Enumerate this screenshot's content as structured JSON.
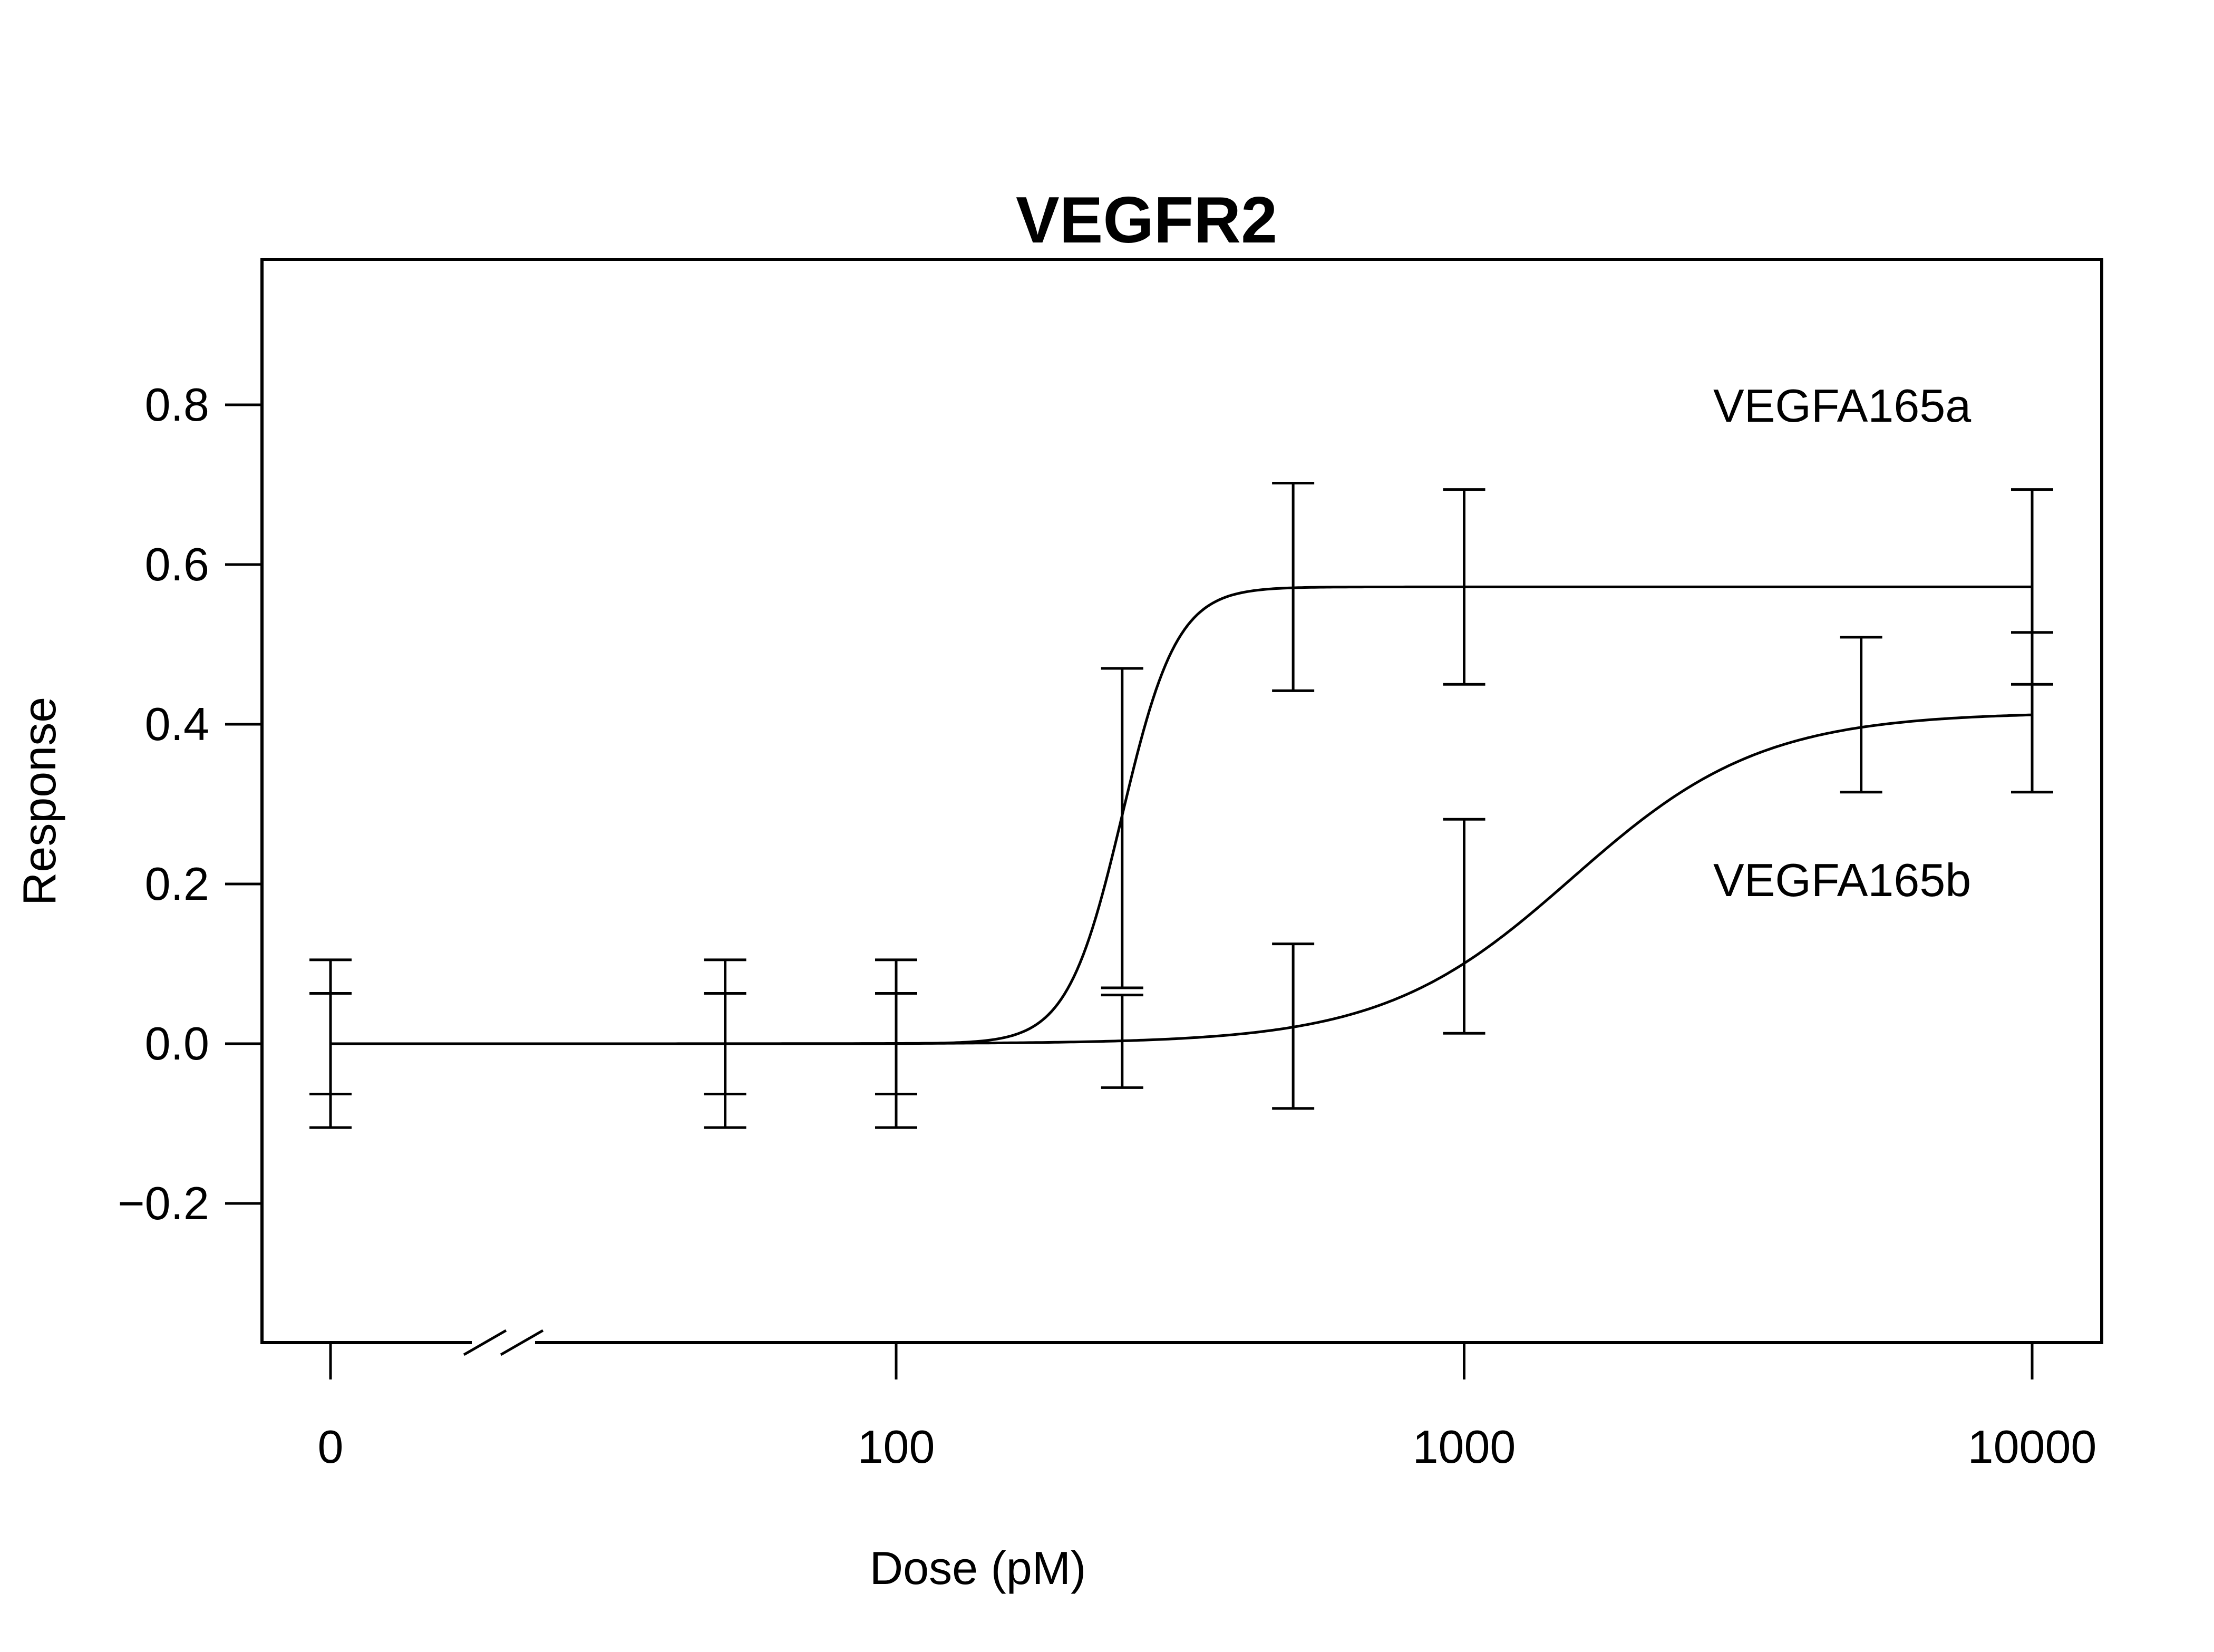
{
  "chart_data": {
    "type": "line",
    "title": "VEGFR2",
    "xlabel": "Dose (pM)",
    "ylabel": "Response",
    "x_scale": "log (with axis break after 0)",
    "x_ticks": [
      "0",
      "100",
      "1000",
      "10000"
    ],
    "y_ticks": [
      "0.8",
      "0.6",
      "0.4",
      "0.2",
      "0.0",
      "−0.2"
    ],
    "ylim": [
      -0.37,
      0.98
    ],
    "grid": false,
    "legend": "none",
    "x_break": true,
    "series": [
      {
        "name": "VEGFA165a",
        "label_placement": "upper-right",
        "fit": {
          "bottom": 0.0,
          "top": 0.572,
          "ec50": 250,
          "hill": 9
        },
        "points": [
          {
            "x": 0,
            "y": 0.0,
            "err": 0.063
          },
          {
            "x": 50,
            "y": 0.0,
            "err": 0.063
          },
          {
            "x": 100,
            "y": 0.0,
            "err": 0.063
          },
          {
            "x": 250,
            "y": 0.27,
            "err": 0.2
          },
          {
            "x": 500,
            "y": 0.572,
            "err": 0.13
          },
          {
            "x": 1000,
            "y": 0.572,
            "err": 0.122
          },
          {
            "x": 10000,
            "y": 0.572,
            "err": 0.122
          }
        ]
      },
      {
        "name": "VEGFA165b",
        "label_placement": "right",
        "fit": {
          "bottom": 0.0,
          "top": 0.415,
          "ec50": 1550,
          "hill": 2.6
        },
        "points": [
          {
            "x": 0,
            "y": 0.0,
            "err": 0.105
          },
          {
            "x": 50,
            "y": 0.0,
            "err": 0.105
          },
          {
            "x": 100,
            "y": 0.0,
            "err": 0.105
          },
          {
            "x": 250,
            "y": 0.003,
            "err": 0.058
          },
          {
            "x": 500,
            "y": 0.022,
            "err": 0.103
          },
          {
            "x": 1000,
            "y": 0.147,
            "err": 0.134
          },
          {
            "x": 5000,
            "y": 0.412,
            "err": 0.097
          },
          {
            "x": 10000,
            "y": 0.415,
            "err": 0.1
          }
        ]
      }
    ]
  }
}
